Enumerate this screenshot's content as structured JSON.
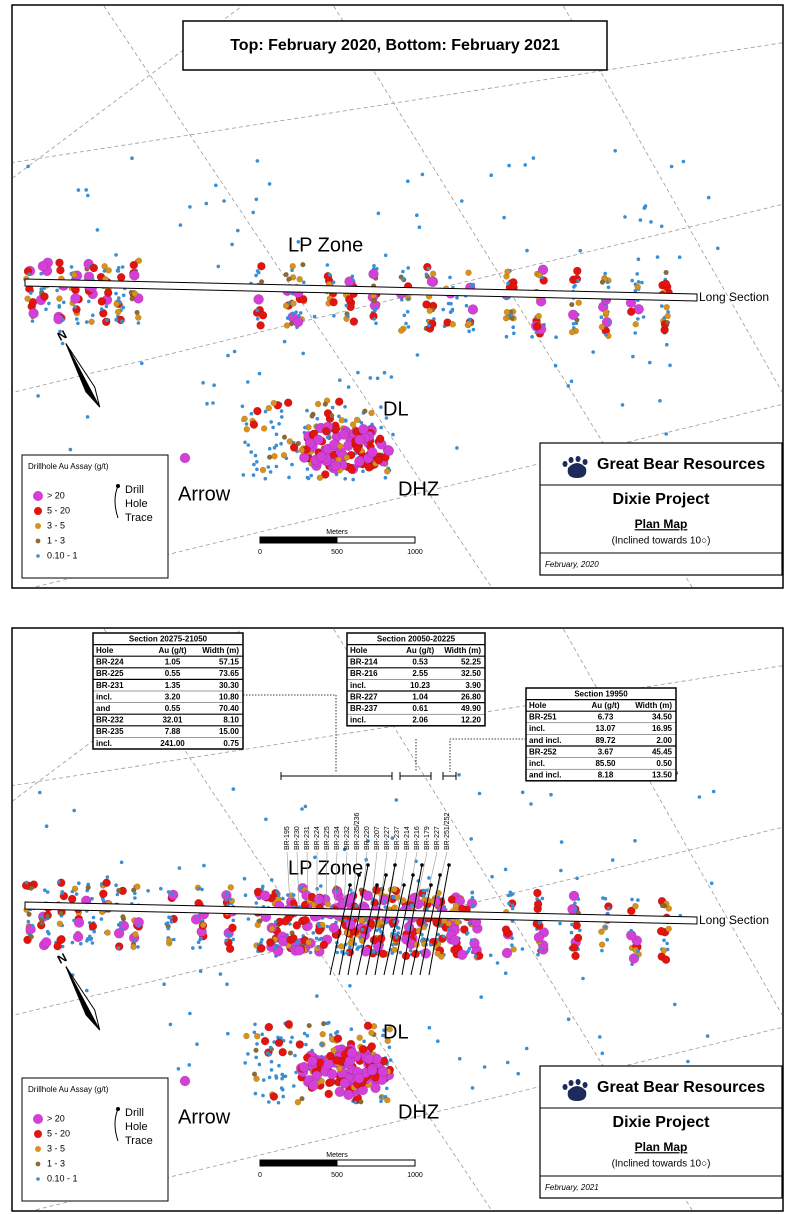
{
  "title": "Top: February 2020, Bottom: February 2021",
  "maps": [
    {
      "zones": {
        "lp": "LP Zone",
        "dl": "DL",
        "dhz": "DHZ",
        "arrow": "Arrow"
      },
      "long_section": "Long Section",
      "north": "N",
      "legend": {
        "title": "Drillhole Au Assay (g/t)",
        "classes": [
          "> 20",
          "5 - 20",
          "3 - 5",
          "1 - 3",
          "0.10 - 1"
        ],
        "trace": [
          "Drill",
          "Hole",
          "Trace"
        ]
      },
      "scale": {
        "label": "Meters",
        "ticks": [
          "0",
          "500",
          "1000"
        ]
      },
      "title_box": {
        "company": "Great Bear Resources",
        "project": "Dixie Project",
        "map": "Plan Map",
        "note": "(Inclined towards 10○)",
        "date": "February, 2020"
      }
    },
    {
      "zones": {
        "lp": "LP Zone",
        "dl": "DL",
        "dhz": "DHZ",
        "arrow": "Arrow"
      },
      "long_section": "Long Section",
      "north": "N",
      "legend": {
        "title": "Drillhole Au Assay (g/t)",
        "classes": [
          "> 20",
          "5 - 20",
          "3 - 5",
          "1 - 3",
          "0.10 - 1"
        ],
        "trace": [
          "Drill",
          "Hole",
          "Trace"
        ]
      },
      "scale": {
        "label": "Meters",
        "ticks": [
          "0",
          "500",
          "1000"
        ]
      },
      "title_box": {
        "company": "Great Bear Resources",
        "project": "Dixie Project",
        "map": "Plan Map",
        "note": "(Inclined towards 10○)",
        "date": "February, 2021"
      }
    }
  ],
  "tables": [
    {
      "title": "Section 20275-21050",
      "header": [
        "Hole",
        "Au (g/t)",
        "Width (m)"
      ],
      "rows": [
        [
          "BR-224",
          "1.05",
          "57.15"
        ],
        [
          "BR-225",
          "0.55",
          "73.65"
        ],
        [
          "BR-231",
          "1.35",
          "30.30"
        ],
        [
          "incl.",
          "3.20",
          "10.80"
        ],
        [
          "and",
          "0.55",
          "70.40"
        ],
        [
          "BR-232",
          "32.01",
          "8.10"
        ],
        [
          "BR-235",
          "7.88",
          "15.00"
        ],
        [
          "incl.",
          "241.00",
          "0.75"
        ]
      ]
    },
    {
      "title": "Section 20050-20225",
      "header": [
        "Hole",
        "Au (g/t)",
        "Width (m)"
      ],
      "rows": [
        [
          "BR-214",
          "0.53",
          "52.25"
        ],
        [
          "BR-216",
          "2.55",
          "32.50"
        ],
        [
          "incl.",
          "10.23",
          "3.90"
        ],
        [
          "BR-227",
          "1.04",
          "26.80"
        ],
        [
          "BR-237",
          "0.61",
          "49.90"
        ],
        [
          "incl.",
          "2.06",
          "12.20"
        ]
      ]
    },
    {
      "title": "Section 19950",
      "header": [
        "Hole",
        "Au (g/t)",
        "Width (m)"
      ],
      "rows": [
        [
          "BR-251",
          "6.73",
          "34.50"
        ],
        [
          "incl.",
          "13.07",
          "16.95"
        ],
        [
          "and incl.",
          "89.72",
          "2.00"
        ],
        [
          "BR-252",
          "3.67",
          "45.45"
        ],
        [
          "incl.",
          "85.50",
          "0.50"
        ],
        [
          "and incl.",
          "8.18",
          "13.50"
        ]
      ]
    }
  ],
  "hole_labels": [
    "BR-195",
    "BR-230",
    "BR-231",
    "BR-224",
    "BR-225",
    "BR-234",
    "BR-232",
    "BR-235/236",
    "BR-220",
    "BR-207",
    "BR-227",
    "BR-237",
    "BR-214",
    "BR-216",
    "BR-179",
    "BR-227",
    "BR-251/252"
  ]
}
